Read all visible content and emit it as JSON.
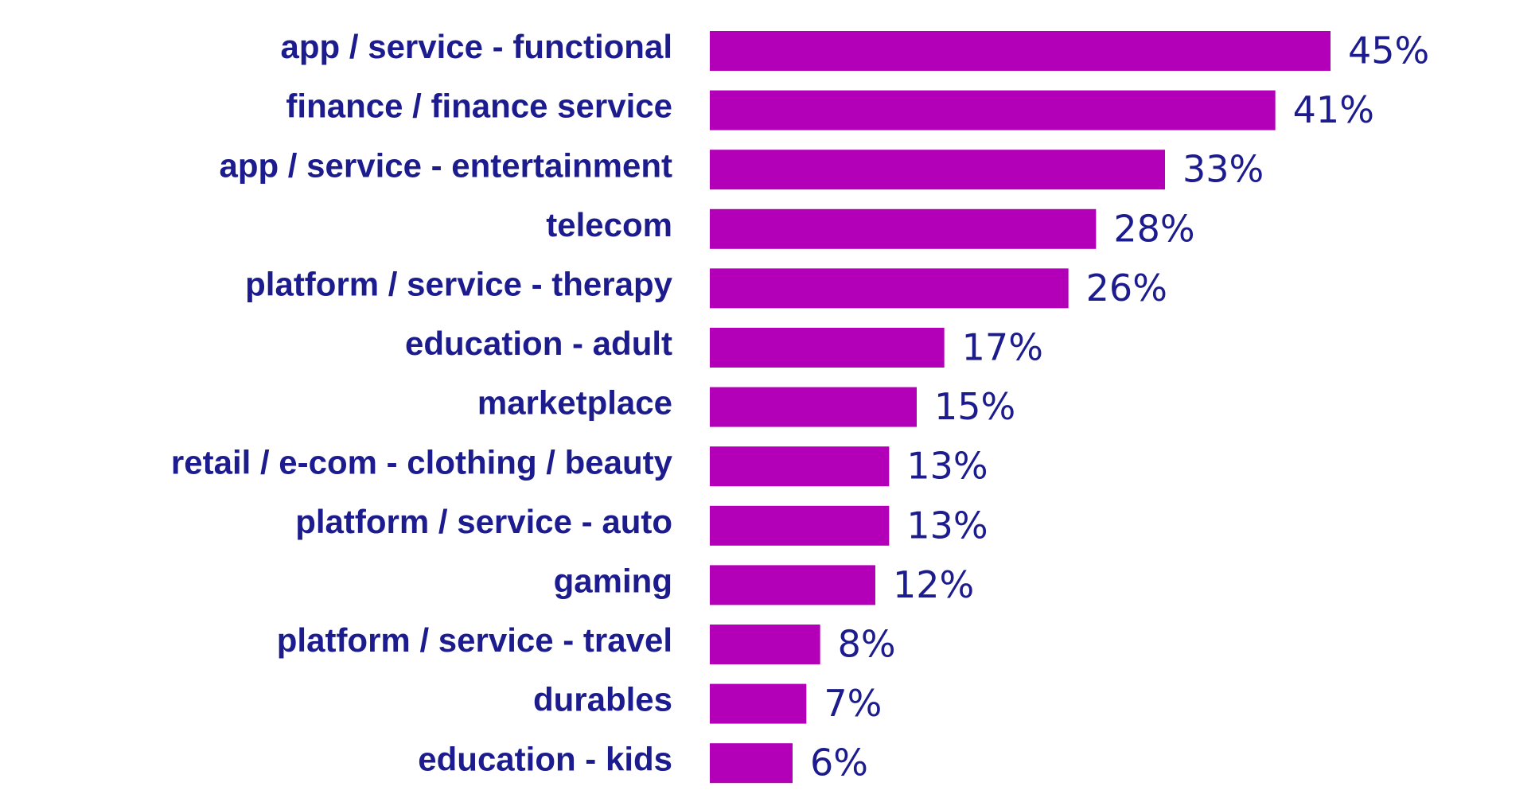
{
  "colors": {
    "bar": "#b300b8",
    "label_text": "#1c1c8e",
    "background": "#ffffff"
  },
  "chart_data": {
    "type": "bar",
    "orientation": "horizontal",
    "title": "",
    "xlabel": "",
    "ylabel": "",
    "grid": false,
    "legend": "none",
    "xlim": [
      0,
      45
    ],
    "categories": [
      "app / service - functional",
      "finance / finance service",
      "app / service - entertainment",
      "telecom",
      "platform / service - therapy",
      "education - adult",
      "marketplace",
      "retail / e-com - clothing / beauty",
      "platform / service - auto",
      "gaming",
      "platform / service - travel",
      "durables",
      "education - kids"
    ],
    "values": [
      45,
      41,
      33,
      28,
      26,
      17,
      15,
      13,
      13,
      12,
      8,
      7,
      6
    ],
    "value_labels": [
      "45%",
      "41%",
      "33%",
      "28%",
      "26%",
      "17%",
      "15%",
      "13%",
      "13%",
      "12%",
      "8%",
      "7%",
      "6%"
    ]
  }
}
